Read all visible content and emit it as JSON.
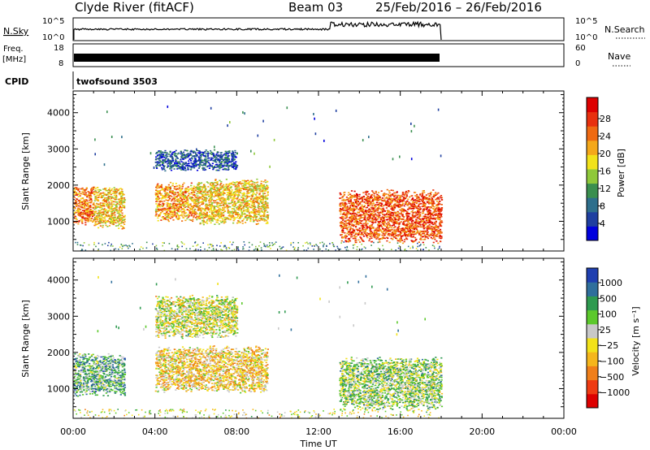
{
  "header": {
    "station": "Clyde River (fitACF)",
    "beam": "Beam 03",
    "dates": "25/Feb/2016 – 26/Feb/2016"
  },
  "strips": {
    "nsky_label": "N.Sky",
    "nsky_ticks": [
      "10^5",
      "10^0"
    ],
    "nsearch_label": "N.Search",
    "nsearch_ticks": [
      "10^5",
      "10^0"
    ],
    "freq_label_1": "Freq.",
    "freq_label_2": "[MHz]",
    "freq_ticks": [
      "18",
      "8"
    ],
    "nave_label": "Nave",
    "nave_ticks": [
      "60",
      "0"
    ],
    "cpid_label": "CPID",
    "cpid_value": "twofsound 3503"
  },
  "colorbars": {
    "power": {
      "label": "Power [dB]",
      "ticks": [
        "28",
        "24",
        "20",
        "16",
        "12",
        "8",
        "4"
      ],
      "colors": [
        "#0000dd",
        "#1f3fa0",
        "#2e6f8c",
        "#3a8f4f",
        "#8fc93a",
        "#f2e21a",
        "#f4a81a",
        "#ef6a12",
        "#e8300e",
        "#dd0000"
      ]
    },
    "velocity": {
      "label": "Velocity [m s⁻¹]",
      "ticks": [
        "1000",
        "500",
        "100",
        "25",
        "−25",
        "−100",
        "−500",
        "−1000"
      ],
      "colors": [
        "#dd0000",
        "#ef3b12",
        "#f07f1a",
        "#f5b61c",
        "#f2e21a",
        "#c8c8c8",
        "#5cc92c",
        "#2e9a4f",
        "#2f6f9c",
        "#1f3fb0"
      ]
    }
  },
  "panel_labels": {
    "ylabel": "Slant Range [km]",
    "xlabel": "Time UT",
    "x_ticks": [
      "00:00",
      "04:00",
      "08:00",
      "12:00",
      "16:00",
      "20:00",
      "00:00"
    ],
    "y_ticks": [
      "1000",
      "2000",
      "3000",
      "4000"
    ]
  },
  "chart_data": [
    {
      "type": "heatmap",
      "name": "power",
      "xlabel": "Time UT",
      "ylabel": "Slant Range [km]",
      "xlim_hours": [
        0,
        24
      ],
      "ylim_km": [
        180,
        4600
      ],
      "colorbar": "Power [dB]",
      "clim": [
        0,
        30
      ],
      "regions": [
        {
          "t": [
            0.0,
            1.0
          ],
          "r": [
            900,
            2000
          ],
          "level": 22
        },
        {
          "t": [
            1.0,
            2.5
          ],
          "r": [
            800,
            2000
          ],
          "level": 18
        },
        {
          "t": [
            4.0,
            6.0
          ],
          "r": [
            1000,
            2100
          ],
          "level": 20
        },
        {
          "t": [
            6.0,
            9.5
          ],
          "r": [
            900,
            2200
          ],
          "level": 18
        },
        {
          "t": [
            4.0,
            8.0
          ],
          "r": [
            2400,
            3000
          ],
          "level": 6
        },
        {
          "t": [
            13.0,
            18.0
          ],
          "r": [
            400,
            1900
          ],
          "level": 24
        }
      ]
    },
    {
      "type": "heatmap",
      "name": "velocity",
      "xlabel": "Time UT",
      "ylabel": "Slant Range [km]",
      "xlim_hours": [
        0,
        24
      ],
      "ylim_km": [
        180,
        4600
      ],
      "colorbar": "Velocity [m s⁻¹]",
      "clim": [
        -1000,
        1000
      ],
      "regions": [
        {
          "t": [
            0.0,
            2.5
          ],
          "r": [
            800,
            2000
          ],
          "level": 400
        },
        {
          "t": [
            4.0,
            9.5
          ],
          "r": [
            900,
            2200
          ],
          "level": -150
        },
        {
          "t": [
            4.0,
            8.0
          ],
          "r": [
            2400,
            3600
          ],
          "level": 15
        },
        {
          "t": [
            13.0,
            18.0
          ],
          "r": [
            400,
            1900
          ],
          "level": 200
        }
      ]
    }
  ]
}
